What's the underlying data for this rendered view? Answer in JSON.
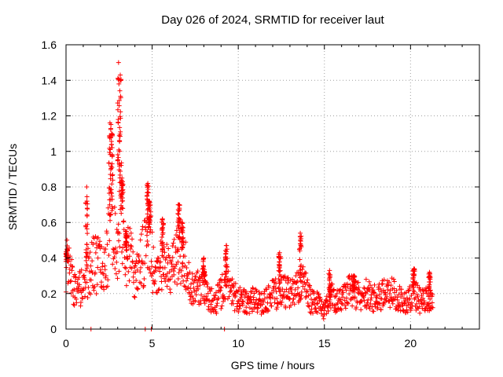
{
  "chart_data": {
    "type": "scatter",
    "title": "Day 026 of 2024, SRMTID for receiver laut",
    "xlabel": "GPS time / hours",
    "ylabel": "SRMTID / TECUs",
    "xlim": [
      0,
      24
    ],
    "ylim": [
      0,
      1.6
    ],
    "x_ticks": [
      0,
      5,
      10,
      15,
      20
    ],
    "y_ticks": [
      0,
      0.2,
      0.4,
      0.6,
      0.8,
      1,
      1.2,
      1.4,
      1.6
    ],
    "x_tick_labels": [
      "0",
      "5",
      "10",
      "15",
      "20"
    ],
    "y_tick_labels": [
      "0",
      "0.2",
      "0.4",
      "0.6",
      "0.8",
      "1",
      "1.2",
      "1.4",
      "1.6"
    ],
    "grid": true,
    "marker": "+",
    "color": "#ff0000",
    "series": [
      {
        "name": "SRMTID",
        "profile": [
          [
            0.0,
            0.38
          ],
          [
            0.3,
            0.28
          ],
          [
            0.6,
            0.22
          ],
          [
            0.9,
            0.24
          ],
          [
            1.2,
            0.3
          ],
          [
            1.5,
            0.36
          ],
          [
            1.8,
            0.36
          ],
          [
            2.1,
            0.34
          ],
          [
            2.4,
            0.4
          ],
          [
            2.6,
            0.7
          ],
          [
            2.8,
            0.5
          ],
          [
            3.0,
            0.45
          ],
          [
            3.2,
            0.75
          ],
          [
            3.4,
            0.45
          ],
          [
            3.7,
            0.4
          ],
          [
            4.0,
            0.3
          ],
          [
            4.4,
            0.38
          ],
          [
            4.8,
            0.55
          ],
          [
            5.1,
            0.3
          ],
          [
            5.4,
            0.35
          ],
          [
            5.8,
            0.4
          ],
          [
            6.2,
            0.33
          ],
          [
            6.6,
            0.45
          ],
          [
            7.0,
            0.35
          ],
          [
            7.4,
            0.22
          ],
          [
            7.8,
            0.25
          ],
          [
            8.2,
            0.2
          ],
          [
            8.6,
            0.14
          ],
          [
            9.0,
            0.2
          ],
          [
            9.4,
            0.28
          ],
          [
            9.8,
            0.18
          ],
          [
            10.2,
            0.16
          ],
          [
            10.6,
            0.15
          ],
          [
            11.0,
            0.17
          ],
          [
            11.4,
            0.14
          ],
          [
            11.8,
            0.18
          ],
          [
            12.2,
            0.2
          ],
          [
            12.6,
            0.22
          ],
          [
            13.0,
            0.2
          ],
          [
            13.4,
            0.22
          ],
          [
            13.8,
            0.25
          ],
          [
            14.2,
            0.16
          ],
          [
            14.6,
            0.15
          ],
          [
            15.0,
            0.1
          ],
          [
            15.4,
            0.18
          ],
          [
            15.8,
            0.15
          ],
          [
            16.2,
            0.2
          ],
          [
            16.6,
            0.22
          ],
          [
            17.0,
            0.18
          ],
          [
            17.4,
            0.2
          ],
          [
            17.8,
            0.17
          ],
          [
            18.2,
            0.2
          ],
          [
            18.6,
            0.19
          ],
          [
            19.0,
            0.2
          ],
          [
            19.4,
            0.17
          ],
          [
            19.8,
            0.15
          ],
          [
            20.2,
            0.2
          ],
          [
            20.6,
            0.15
          ],
          [
            21.0,
            0.17
          ],
          [
            21.3,
            0.15
          ]
        ],
        "spikes": [
          [
            0.05,
            0.45
          ],
          [
            1.2,
            0.8
          ],
          [
            2.55,
            1.16
          ],
          [
            2.65,
            1.1
          ],
          [
            3.05,
            1.5
          ],
          [
            3.15,
            1.43
          ],
          [
            3.25,
            0.85
          ],
          [
            3.5,
            0.55
          ],
          [
            4.75,
            0.82
          ],
          [
            4.85,
            0.72
          ],
          [
            5.6,
            0.62
          ],
          [
            6.55,
            0.7
          ],
          [
            6.75,
            0.6
          ],
          [
            8.0,
            0.4
          ],
          [
            9.3,
            0.47
          ],
          [
            12.4,
            0.43
          ],
          [
            13.6,
            0.54
          ],
          [
            15.3,
            0.33
          ],
          [
            16.7,
            0.3
          ],
          [
            20.2,
            0.34
          ],
          [
            21.1,
            0.32
          ]
        ],
        "zeros": [
          1.45,
          4.6,
          4.95,
          9.2
        ]
      }
    ]
  }
}
